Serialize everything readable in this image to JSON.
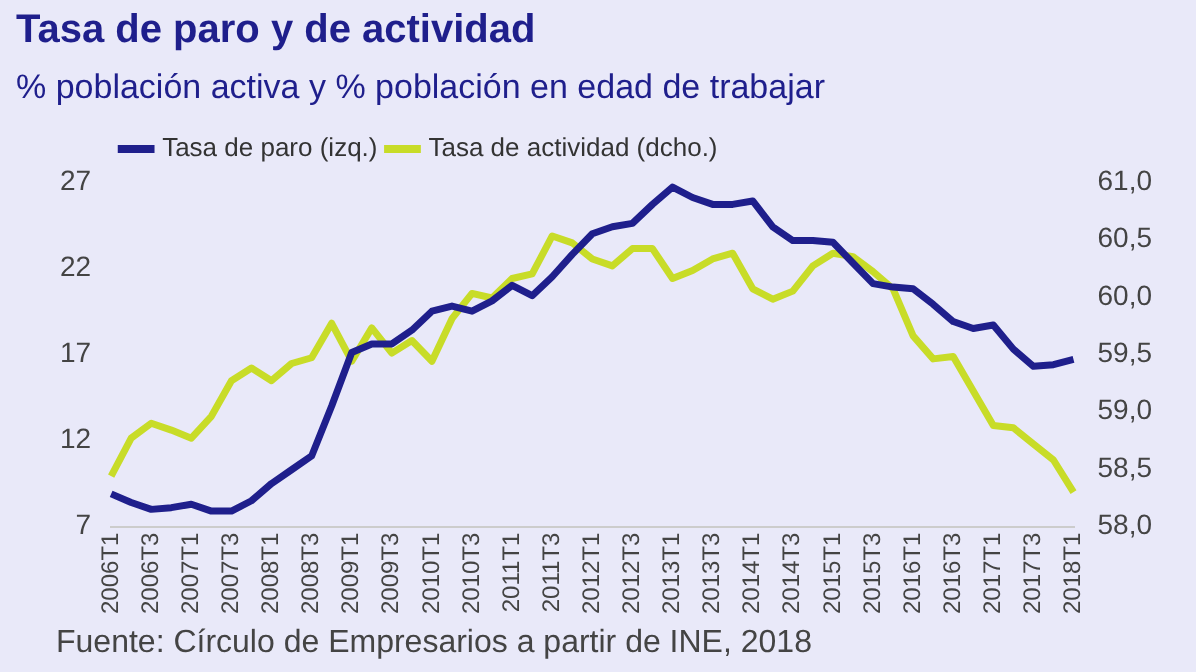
{
  "chart_data": {
    "type": "line",
    "title": "Tasa de paro y de actividad",
    "subtitle": "% población activa y % población en edad de trabajar",
    "categories": [
      "2006T1",
      null,
      "2006T3",
      null,
      "2007T1",
      null,
      "2007T3",
      null,
      "2008T1",
      null,
      "2008T3",
      null,
      "2009T1",
      null,
      "2009T3",
      null,
      "2010T1",
      null,
      "2010T3",
      null,
      "2011T1",
      null,
      "2011T3",
      null,
      "2012T1",
      null,
      "2012T3",
      null,
      "2013T1",
      null,
      "2013T3",
      null,
      "2014T1",
      null,
      "2014T3",
      null,
      "2015T1",
      null,
      "2015T3",
      null,
      "2016T1",
      null,
      "2016T3",
      null,
      "2017T1",
      null,
      "2017T3",
      null,
      "2018T1"
    ],
    "series": [
      {
        "name": "Tasa de paro (izq.)",
        "color": "#1f1f8c",
        "values": [
          8.9,
          8.4,
          8.0,
          8.1,
          8.3,
          7.9,
          7.9,
          8.5,
          9.5,
          10.3,
          11.1,
          14.0,
          17.1,
          17.6,
          17.6,
          18.4,
          19.5,
          19.8,
          19.5,
          20.1,
          21.0,
          20.4,
          21.5,
          22.8,
          24.0,
          24.4,
          24.6,
          25.7,
          26.7,
          26.1,
          25.7,
          25.7,
          25.9,
          24.4,
          23.6,
          23.6,
          23.5,
          22.3,
          21.1,
          20.9,
          20.8,
          19.9,
          18.9,
          18.5,
          18.7,
          17.3,
          16.3,
          16.4,
          16.7
        ]
      },
      {
        "name": "Tasa de actividad (dcho.)",
        "color": "#c8dc28",
        "axis": "y2",
        "values": [
          58.44,
          58.77,
          58.9,
          58.84,
          58.77,
          58.96,
          59.27,
          59.38,
          59.27,
          59.42,
          59.47,
          59.77,
          59.44,
          59.73,
          59.51,
          59.62,
          59.44,
          59.81,
          60.03,
          59.99,
          60.16,
          60.2,
          60.53,
          60.47,
          60.33,
          60.27,
          60.42,
          60.42,
          60.16,
          60.23,
          60.33,
          60.38,
          60.07,
          59.98,
          60.05,
          60.27,
          60.38,
          60.35,
          60.22,
          60.07,
          59.66,
          59.46,
          59.48,
          59.18,
          58.88,
          58.86,
          58.72,
          58.58,
          58.3
        ]
      }
    ],
    "ylim": [
      7,
      27
    ],
    "yticks": [
      7,
      12,
      17,
      22,
      27
    ],
    "y2lim": [
      58,
      61
    ],
    "y2ticks": [
      {
        "value": 58,
        "label": "58,0"
      },
      {
        "value": 58.5,
        "label": "58,5"
      },
      {
        "value": 59,
        "label": "59,0"
      },
      {
        "value": 59.5,
        "label": "59,5"
      },
      {
        "value": 60,
        "label": "60,0"
      },
      {
        "value": 60.5,
        "label": "60,5"
      },
      {
        "value": 61,
        "label": "61,0"
      }
    ],
    "grid": false,
    "legend": "top left",
    "marker": "none",
    "line_style": "solid",
    "annotations": [
      "Fuente: Círculo de Empresarios a partir de INE, 2018"
    ]
  }
}
